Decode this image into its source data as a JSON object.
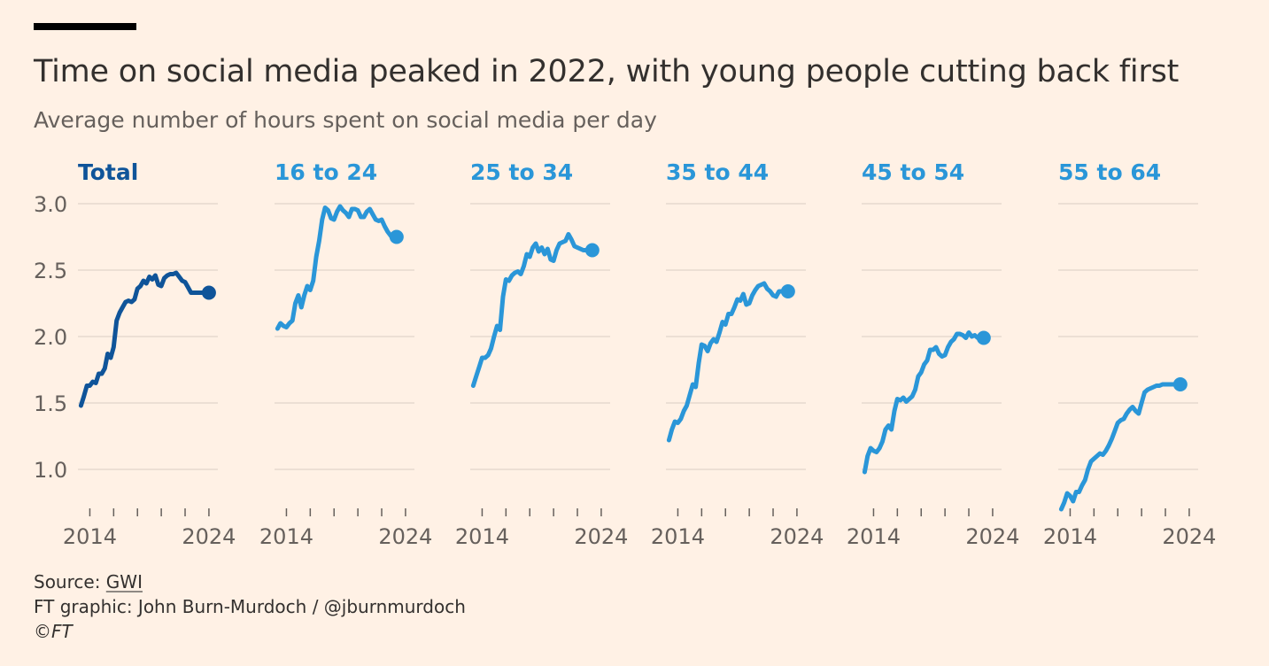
{
  "title": "Time on social media peaked in 2022, with young people cutting back first",
  "subtitle": "Average number of hours spent on social media per day",
  "footer": {
    "source_prefix": "Source: ",
    "source_name": "GWI",
    "credit": "FT graphic: John Burn-Murdoch / @jburnmurdoch",
    "copyright": "©FT"
  },
  "colors": {
    "background": "#fff1e5",
    "total": "#0f5499",
    "age_groups": "#2a96d8",
    "grid": "#e6d9ce",
    "tick_text": "#66605c"
  },
  "chart_data": {
    "type": "line",
    "ylim": [
      0.7,
      3.05
    ],
    "yticks": [
      1.0,
      1.5,
      2.0,
      2.5,
      3.0
    ],
    "ytick_labels": [
      "1.0",
      "1.5",
      "2.0",
      "2.5",
      "3.0"
    ],
    "xlim": [
      2013.0,
      2024.75
    ],
    "xticks": [
      2014,
      2016,
      2018,
      2020,
      2022,
      2024
    ],
    "xtick_labels": [
      "2014",
      "",
      "",
      "",
      "",
      "2024"
    ],
    "grid": true,
    "end_marker": true,
    "series": [
      {
        "name": "Total",
        "color": "#0f5499",
        "bold": true,
        "x": [
          2013.25,
          2013.5,
          2013.75,
          2014.0,
          2014.25,
          2014.5,
          2014.75,
          2015.0,
          2015.25,
          2015.5,
          2015.75,
          2016.0,
          2016.25,
          2016.5,
          2016.75,
          2017.0,
          2017.25,
          2017.5,
          2017.75,
          2018.0,
          2018.25,
          2018.5,
          2018.75,
          2019.0,
          2019.25,
          2019.5,
          2019.75,
          2020.0,
          2020.25,
          2020.5,
          2020.75,
          2021.0,
          2021.25,
          2021.5,
          2021.75,
          2022.0,
          2022.25,
          2022.5,
          2022.75,
          2023.0,
          2023.25,
          2023.5,
          2023.75,
          2024.0
        ],
        "y": [
          1.48,
          1.55,
          1.63,
          1.63,
          1.66,
          1.65,
          1.72,
          1.72,
          1.76,
          1.87,
          1.84,
          1.92,
          2.12,
          2.18,
          2.22,
          2.26,
          2.27,
          2.26,
          2.28,
          2.36,
          2.38,
          2.42,
          2.4,
          2.45,
          2.43,
          2.46,
          2.39,
          2.38,
          2.44,
          2.46,
          2.47,
          2.47,
          2.48,
          2.45,
          2.42,
          2.41,
          2.37,
          2.33,
          2.33,
          2.33,
          2.33,
          2.33,
          2.33,
          2.33
        ]
      },
      {
        "name": "16 to 24",
        "color": "#2a96d8",
        "x": [
          2013.25,
          2013.5,
          2013.75,
          2014.0,
          2014.25,
          2014.5,
          2014.75,
          2015.0,
          2015.25,
          2015.5,
          2015.75,
          2016.0,
          2016.25,
          2016.5,
          2016.75,
          2017.0,
          2017.25,
          2017.5,
          2017.75,
          2018.0,
          2018.25,
          2018.5,
          2018.75,
          2019.0,
          2019.25,
          2019.5,
          2019.75,
          2020.0,
          2020.25,
          2020.5,
          2020.75,
          2021.0,
          2021.25,
          2021.5,
          2021.75,
          2022.0,
          2022.25,
          2022.5,
          2022.75,
          2023.0,
          2023.25
        ],
        "y": [
          2.06,
          2.1,
          2.08,
          2.07,
          2.1,
          2.12,
          2.25,
          2.31,
          2.22,
          2.31,
          2.38,
          2.35,
          2.42,
          2.6,
          2.72,
          2.88,
          2.97,
          2.95,
          2.89,
          2.88,
          2.94,
          2.98,
          2.95,
          2.93,
          2.9,
          2.96,
          2.96,
          2.95,
          2.9,
          2.9,
          2.94,
          2.96,
          2.92,
          2.88,
          2.87,
          2.88,
          2.83,
          2.79,
          2.76,
          2.73,
          2.75
        ]
      },
      {
        "name": "25 to 34",
        "color": "#2a96d8",
        "x": [
          2013.25,
          2013.5,
          2013.75,
          2014.0,
          2014.25,
          2014.5,
          2014.75,
          2015.0,
          2015.25,
          2015.5,
          2015.75,
          2016.0,
          2016.25,
          2016.5,
          2016.75,
          2017.0,
          2017.25,
          2017.5,
          2017.75,
          2018.0,
          2018.25,
          2018.5,
          2018.75,
          2019.0,
          2019.25,
          2019.5,
          2019.75,
          2020.0,
          2020.25,
          2020.5,
          2020.75,
          2021.0,
          2021.25,
          2021.5,
          2021.75,
          2022.0,
          2022.25,
          2022.5,
          2022.75,
          2023.0,
          2023.25
        ],
        "y": [
          1.63,
          1.7,
          1.77,
          1.84,
          1.84,
          1.86,
          1.91,
          2.0,
          2.08,
          2.05,
          2.3,
          2.43,
          2.42,
          2.46,
          2.48,
          2.49,
          2.47,
          2.53,
          2.62,
          2.6,
          2.67,
          2.7,
          2.64,
          2.67,
          2.62,
          2.66,
          2.58,
          2.57,
          2.65,
          2.7,
          2.71,
          2.72,
          2.77,
          2.73,
          2.68,
          2.67,
          2.66,
          2.65,
          2.65,
          2.65,
          2.65
        ]
      },
      {
        "name": "35 to 44",
        "color": "#2a96d8",
        "x": [
          2013.25,
          2013.5,
          2013.75,
          2014.0,
          2014.25,
          2014.5,
          2014.75,
          2015.0,
          2015.25,
          2015.5,
          2015.75,
          2016.0,
          2016.25,
          2016.5,
          2016.75,
          2017.0,
          2017.25,
          2017.5,
          2017.75,
          2018.0,
          2018.25,
          2018.5,
          2018.75,
          2019.0,
          2019.25,
          2019.5,
          2019.75,
          2020.0,
          2020.25,
          2020.5,
          2020.75,
          2021.0,
          2021.25,
          2021.5,
          2021.75,
          2022.0,
          2022.25,
          2022.5,
          2022.75,
          2023.0,
          2023.25
        ],
        "y": [
          1.22,
          1.3,
          1.36,
          1.35,
          1.38,
          1.44,
          1.48,
          1.56,
          1.64,
          1.62,
          1.8,
          1.94,
          1.93,
          1.89,
          1.95,
          1.98,
          1.96,
          2.03,
          2.11,
          2.09,
          2.17,
          2.17,
          2.22,
          2.28,
          2.27,
          2.32,
          2.24,
          2.25,
          2.31,
          2.35,
          2.38,
          2.39,
          2.4,
          2.36,
          2.34,
          2.31,
          2.3,
          2.34,
          2.34,
          2.34,
          2.34
        ]
      },
      {
        "name": "45 to 54",
        "color": "#2a96d8",
        "x": [
          2013.25,
          2013.5,
          2013.75,
          2014.0,
          2014.25,
          2014.5,
          2014.75,
          2015.0,
          2015.25,
          2015.5,
          2015.75,
          2016.0,
          2016.25,
          2016.5,
          2016.75,
          2017.0,
          2017.25,
          2017.5,
          2017.75,
          2018.0,
          2018.25,
          2018.5,
          2018.75,
          2019.0,
          2019.25,
          2019.5,
          2019.75,
          2020.0,
          2020.25,
          2020.5,
          2020.75,
          2021.0,
          2021.25,
          2021.5,
          2021.75,
          2022.0,
          2022.25,
          2022.5,
          2022.75,
          2023.0,
          2023.25
        ],
        "y": [
          0.98,
          1.1,
          1.16,
          1.14,
          1.13,
          1.16,
          1.21,
          1.3,
          1.33,
          1.3,
          1.44,
          1.53,
          1.52,
          1.54,
          1.51,
          1.53,
          1.55,
          1.6,
          1.7,
          1.73,
          1.79,
          1.82,
          1.9,
          1.9,
          1.92,
          1.87,
          1.85,
          1.86,
          1.92,
          1.96,
          1.98,
          2.02,
          2.02,
          2.01,
          1.99,
          2.03,
          2.0,
          2.01,
          1.99,
          1.99,
          1.99
        ]
      },
      {
        "name": "55 to 64",
        "color": "#2a96d8",
        "x": [
          2013.25,
          2013.5,
          2013.75,
          2014.0,
          2014.25,
          2014.5,
          2014.75,
          2015.0,
          2015.25,
          2015.5,
          2015.75,
          2016.0,
          2016.25,
          2016.5,
          2016.75,
          2017.0,
          2017.25,
          2017.5,
          2017.75,
          2018.0,
          2018.25,
          2018.5,
          2018.75,
          2019.0,
          2019.25,
          2019.5,
          2019.75,
          2020.0,
          2020.25,
          2020.5,
          2020.75,
          2021.0,
          2021.25,
          2021.5,
          2021.75,
          2022.0,
          2022.25,
          2022.5,
          2022.75,
          2023.0,
          2023.25
        ],
        "y": [
          0.7,
          0.75,
          0.82,
          0.8,
          0.76,
          0.83,
          0.83,
          0.88,
          0.92,
          1.0,
          1.06,
          1.08,
          1.1,
          1.12,
          1.11,
          1.14,
          1.18,
          1.23,
          1.29,
          1.35,
          1.37,
          1.38,
          1.42,
          1.45,
          1.47,
          1.44,
          1.42,
          1.5,
          1.58,
          1.6,
          1.61,
          1.62,
          1.63,
          1.63,
          1.64,
          1.64,
          1.64,
          1.64,
          1.64,
          1.64,
          1.64
        ]
      }
    ]
  }
}
